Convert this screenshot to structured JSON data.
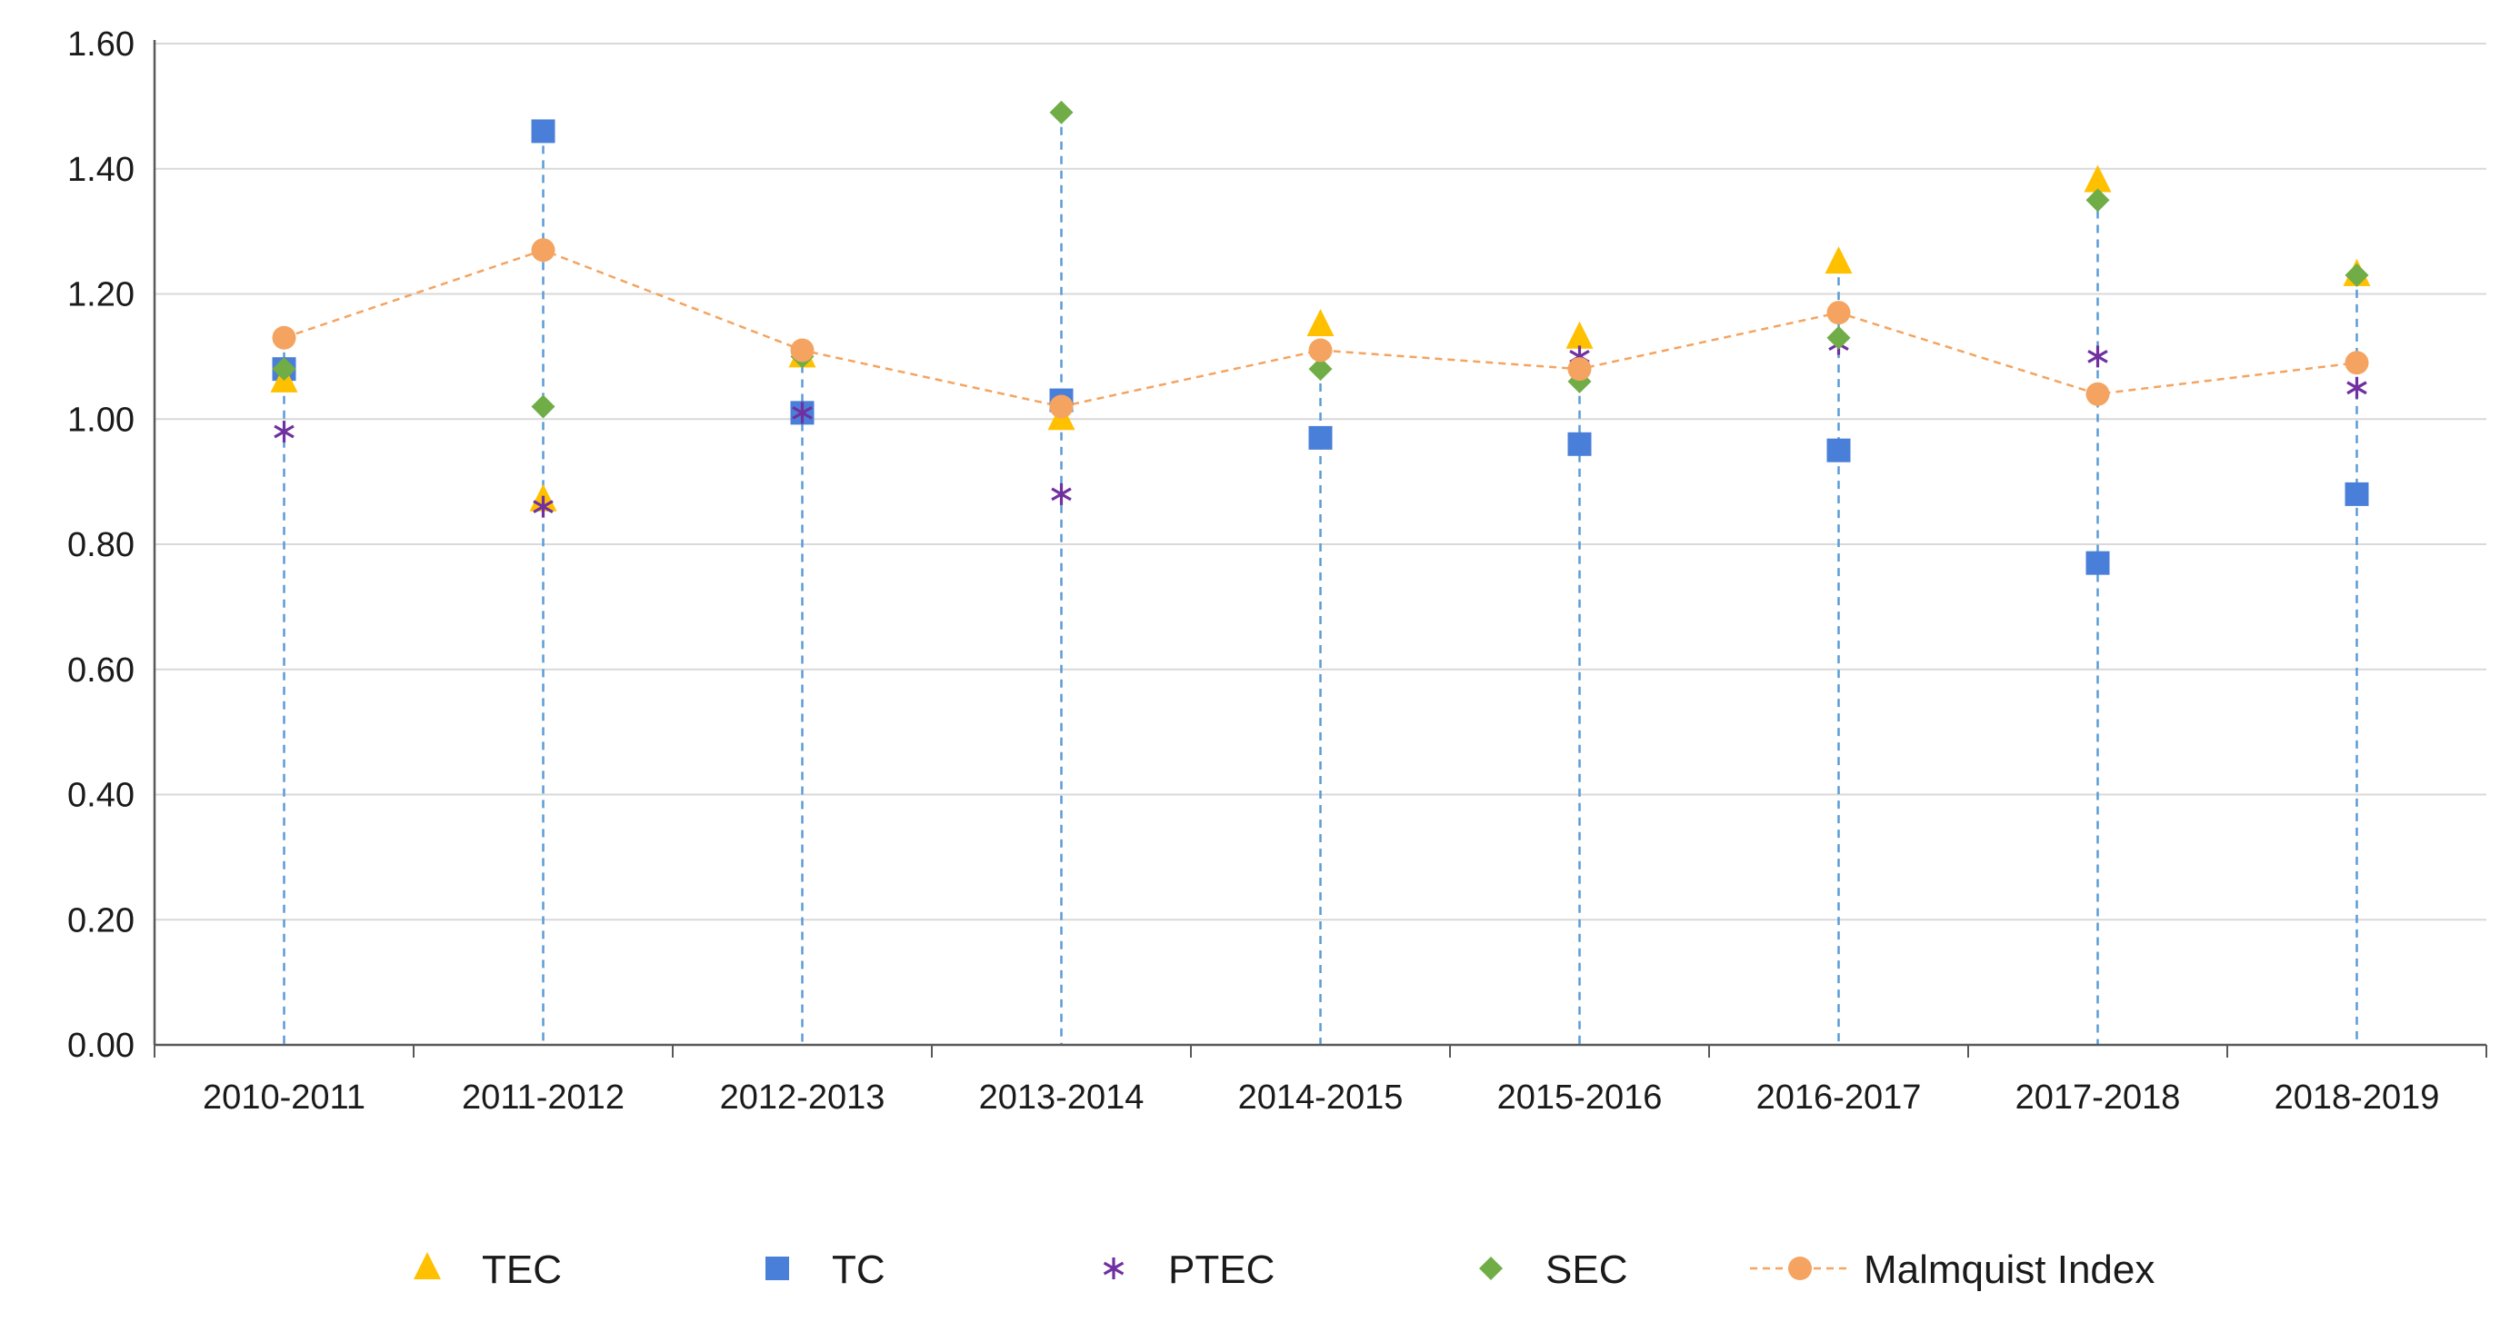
{
  "chart_data": {
    "type": "scatter",
    "title": "",
    "xlabel": "",
    "ylabel": "",
    "ylim": [
      0,
      1.6
    ],
    "ytick_step": 0.2,
    "ytick_labels": [
      "0.00",
      "0.20",
      "0.40",
      "0.60",
      "0.80",
      "1.00",
      "1.20",
      "1.40",
      "1.60"
    ],
    "grid": "horizontal",
    "legend_position": "bottom",
    "categories": [
      "2010-2011",
      "2011-2012",
      "2012-2013",
      "2013-2014",
      "2014-2015",
      "2015-2016",
      "2016-2017",
      "2017-2018",
      "2018-2019"
    ],
    "drop_lines": {
      "color": "#5B9BD5",
      "style": "dashed"
    },
    "series": [
      {
        "name": "TEC",
        "marker": "triangle",
        "color": "#FFC000",
        "values": [
          1.06,
          0.87,
          1.1,
          1.0,
          1.15,
          1.13,
          1.25,
          1.38,
          1.23
        ]
      },
      {
        "name": "TC",
        "marker": "square",
        "color": "#4A7FD9",
        "values": [
          1.08,
          1.46,
          1.01,
          1.03,
          0.97,
          0.96,
          0.95,
          0.77,
          0.88
        ]
      },
      {
        "name": "PTEC",
        "marker": "star",
        "color": "#7030A0",
        "values": [
          0.98,
          0.86,
          1.01,
          0.88,
          1.11,
          1.1,
          1.12,
          1.1,
          1.05
        ]
      },
      {
        "name": "SEC",
        "marker": "diamond",
        "color": "#70AD47",
        "values": [
          1.08,
          1.02,
          1.1,
          1.49,
          1.08,
          1.06,
          1.13,
          1.35,
          1.23
        ]
      },
      {
        "name": "Malmquist Index",
        "marker": "circle",
        "color": "#F4A460",
        "line": "dashed",
        "values": [
          1.13,
          1.27,
          1.11,
          1.02,
          1.11,
          1.08,
          1.17,
          1.04,
          1.09
        ]
      }
    ]
  }
}
